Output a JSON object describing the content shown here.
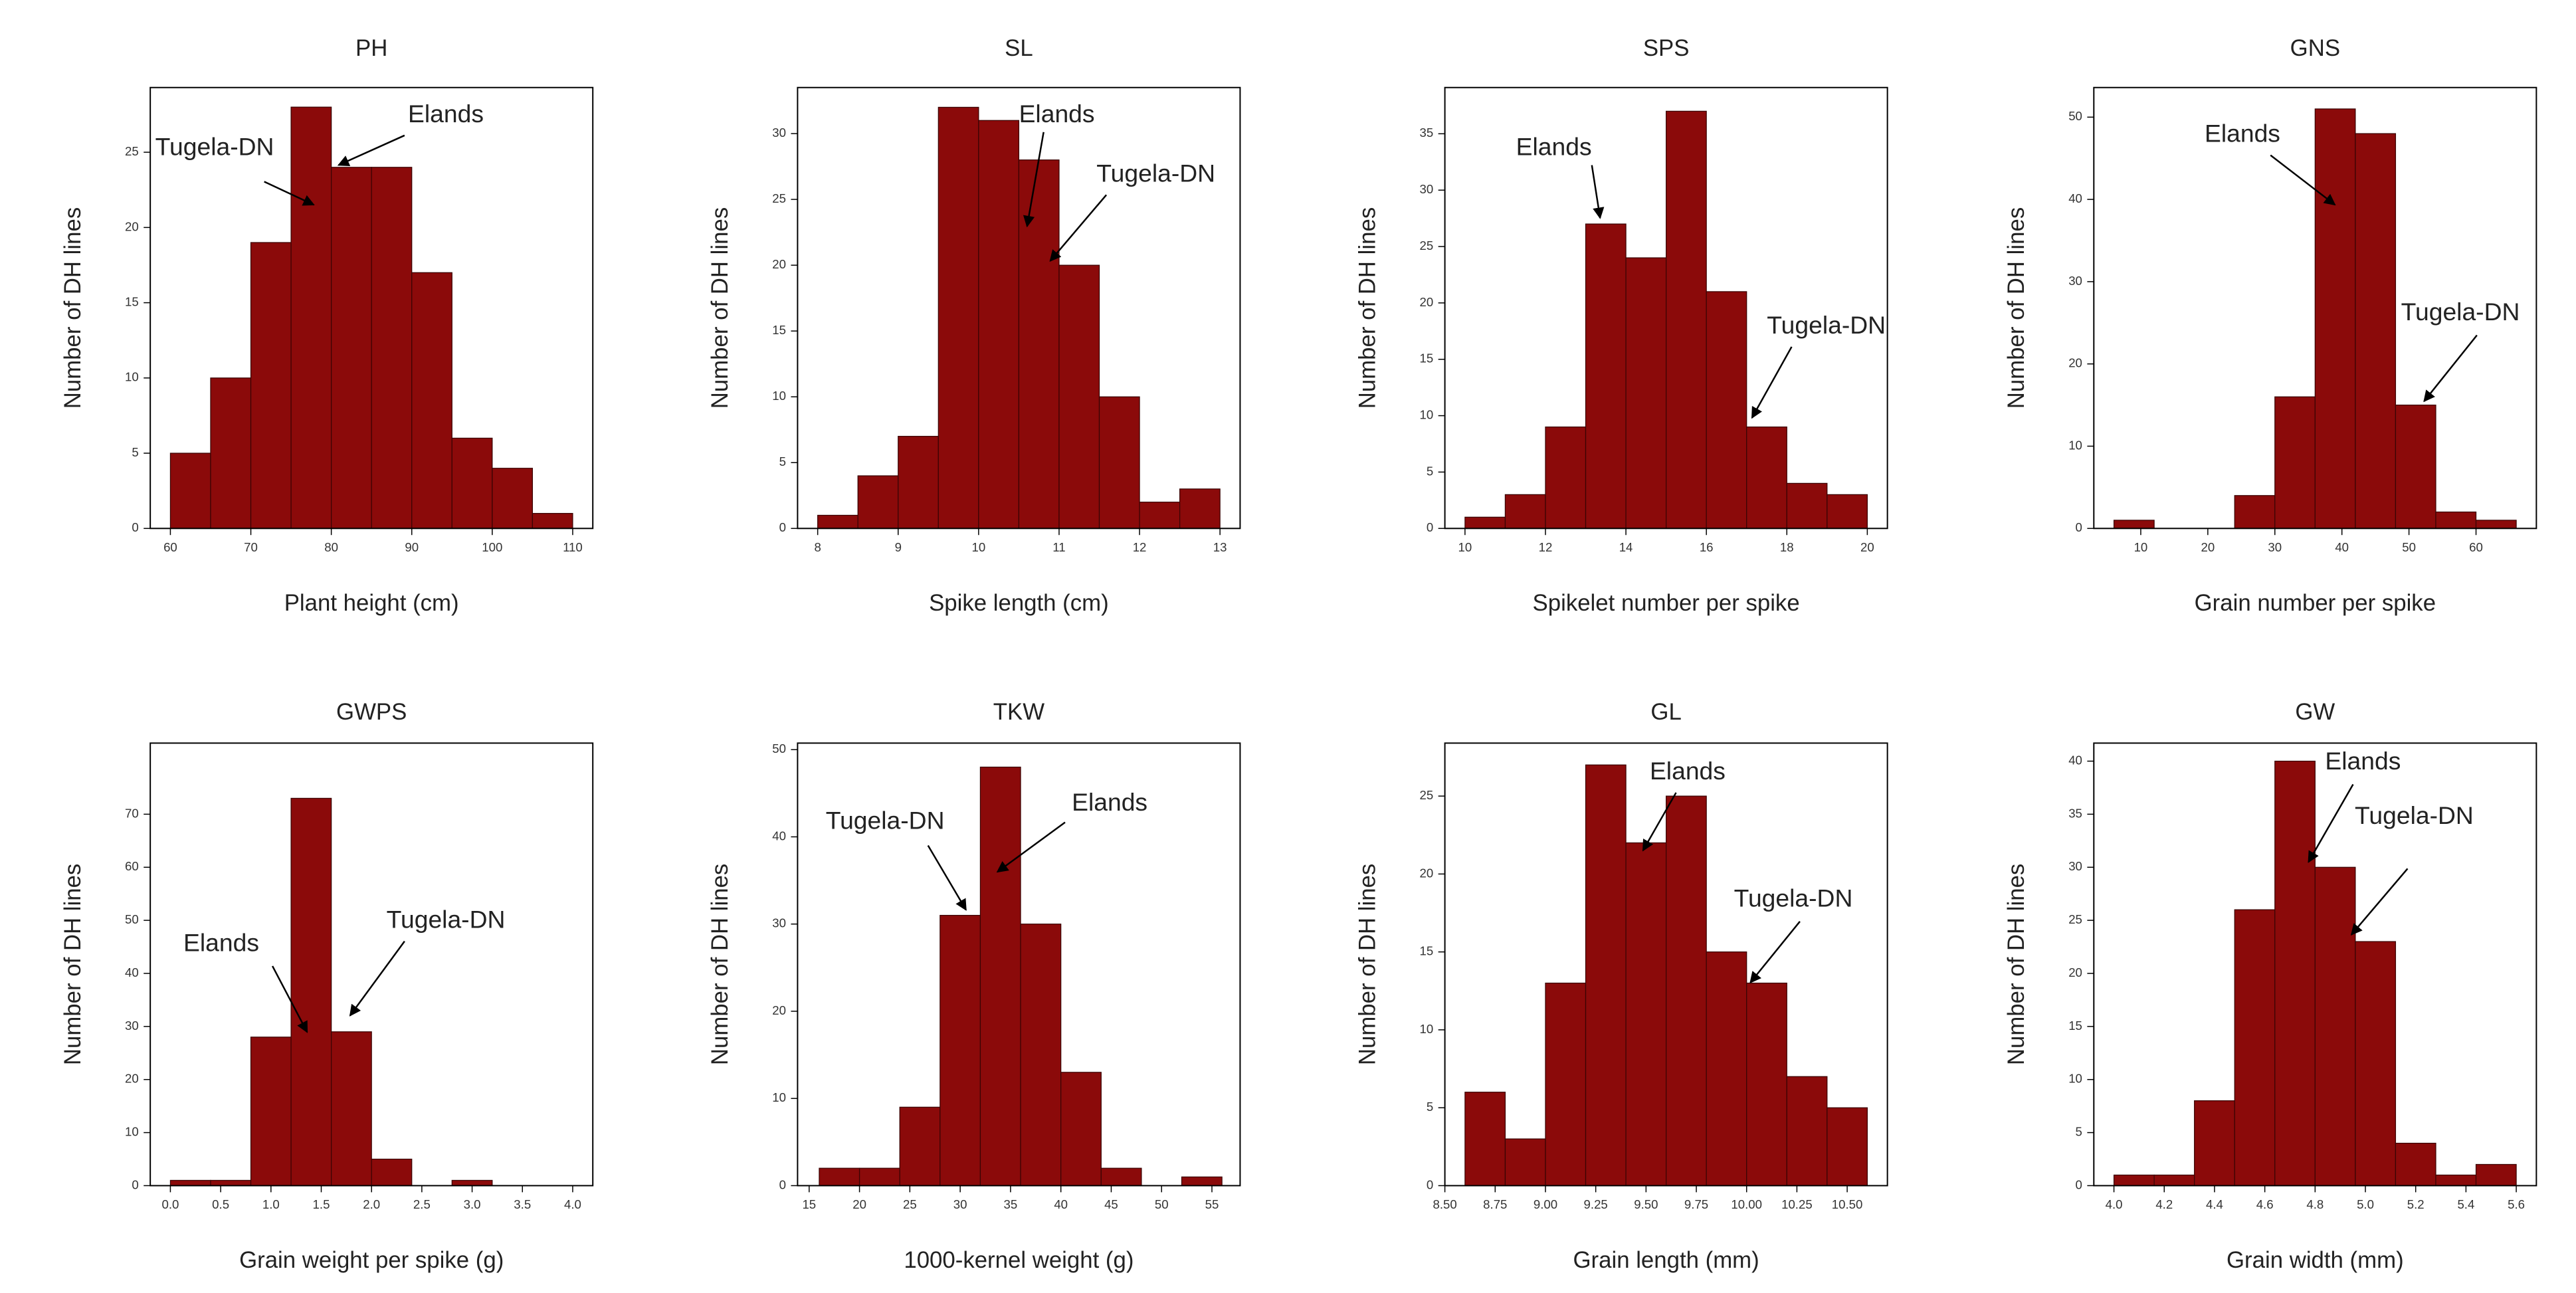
{
  "chart_data": [
    {
      "type": "histogram",
      "title": "PH",
      "xlabel": "Plant height (cm)",
      "ylabel": "Number of DH lines",
      "color": "#8b0a0a",
      "bins": [
        60,
        65,
        70,
        75,
        80,
        85,
        90,
        95,
        100,
        105,
        110
      ],
      "counts": [
        5,
        10,
        19,
        28,
        24,
        24,
        17,
        6,
        4,
        1
      ],
      "xlim": [
        57.5,
        112.5
      ],
      "xticks": [
        60,
        70,
        80,
        90,
        100,
        110
      ],
      "ylim": [
        0,
        29.3
      ],
      "yticks": [
        0,
        5,
        10,
        15,
        20,
        25
      ],
      "annotations": [
        "Tugela-DN",
        "Elands"
      ]
    },
    {
      "type": "histogram",
      "title": "SL",
      "xlabel": "Spike length (cm)",
      "ylabel": "Number of DH lines",
      "color": "#8b0a0a",
      "bins": [
        8,
        8.5,
        9,
        9.5,
        10,
        10.5,
        11,
        11.5,
        12,
        12.5,
        13
      ],
      "counts": [
        1,
        4,
        7,
        32,
        31,
        28,
        20,
        10,
        2,
        3
      ],
      "xlim": [
        7.75,
        13.25
      ],
      "xticks": [
        8,
        9,
        10,
        11,
        12,
        13
      ],
      "ylim": [
        0,
        33.5
      ],
      "yticks": [
        0,
        5,
        10,
        15,
        20,
        25,
        30
      ],
      "annotations": [
        "Elands",
        "Tugela-DN"
      ]
    },
    {
      "type": "histogram",
      "title": "SPS",
      "xlabel": "Spikelet number per spike",
      "ylabel": "Number of DH lines",
      "color": "#8b0a0a",
      "bins": [
        10,
        11,
        12,
        13,
        14,
        15,
        16,
        17,
        18,
        19,
        20
      ],
      "counts": [
        1,
        3,
        9,
        27,
        24,
        37,
        21,
        9,
        4,
        3
      ],
      "xlim": [
        9.5,
        20.5
      ],
      "xticks": [
        10,
        12,
        14,
        16,
        18,
        20
      ],
      "ylim": [
        0,
        39.1
      ],
      "yticks": [
        0,
        5,
        10,
        15,
        20,
        25,
        30,
        35
      ],
      "annotations": [
        "Elands",
        "Tugela-DN"
      ]
    },
    {
      "type": "histogram",
      "title": "GNS",
      "xlabel": "Grain number per spike",
      "ylabel": "Number of DH lines",
      "color": "#8b0a0a",
      "bins": [
        6,
        12,
        18,
        24,
        30,
        36,
        42,
        48,
        54,
        60,
        66
      ],
      "counts": [
        1,
        0,
        0,
        4,
        16,
        51,
        48,
        15,
        2,
        1
      ],
      "xlim": [
        3,
        69
      ],
      "xticks": [
        10,
        20,
        30,
        40,
        50,
        60
      ],
      "ylim": [
        0,
        53.6
      ],
      "yticks": [
        0,
        10,
        20,
        30,
        40,
        50
      ],
      "annotations": [
        "Elands",
        "Tugela-DN"
      ]
    },
    {
      "type": "histogram",
      "title": "GWPS",
      "xlabel": "Grain weight per spike (g)",
      "ylabel": "Number of DH lines",
      "color": "#8b0a0a",
      "bins": [
        0,
        0.4,
        0.8,
        1.2,
        1.6,
        2.0,
        2.4,
        2.8,
        3.2
      ],
      "counts": [
        1,
        1,
        28,
        73,
        29,
        5,
        0,
        1
      ],
      "xlim": [
        -0.2,
        4.2
      ],
      "xticks": [
        {
          "value": 0,
          "label": "0.0"
        },
        0.5,
        {
          "value": 1,
          "label": "1.0"
        },
        1.5,
        {
          "value": 2,
          "label": "2.0"
        },
        2.5,
        {
          "value": 3,
          "label": "3.0"
        },
        3.5,
        {
          "value": 4,
          "label": "4.0"
        }
      ],
      "ylim": [
        0,
        83.4
      ],
      "yticks": [
        0,
        10,
        20,
        30,
        40,
        50,
        60,
        70
      ],
      "annotations": [
        "Elands",
        "Tugela-DN"
      ]
    },
    {
      "type": "histogram",
      "title": "TKW",
      "xlabel": "1000-kernel weight (g)",
      "ylabel": "Number of DH lines",
      "color": "#8b0a0a",
      "bins": [
        16,
        20,
        24,
        28,
        32,
        36,
        40,
        44,
        48,
        52,
        56
      ],
      "counts": [
        2,
        2,
        9,
        31,
        48,
        30,
        13,
        2,
        0,
        1
      ],
      "xlim": [
        13.85,
        57.8
      ],
      "xticks": [
        15,
        20,
        25,
        30,
        35,
        40,
        45,
        50,
        55
      ],
      "ylim": [
        0,
        50.75
      ],
      "yticks": [
        0,
        10,
        20,
        30,
        40,
        50
      ],
      "annotations": [
        "Tugela-DN",
        "Elands"
      ]
    },
    {
      "type": "histogram",
      "title": "GL",
      "xlabel": "Grain length (mm)",
      "ylabel": "Number of DH lines",
      "color": "#8b0a0a",
      "bins": [
        8.6,
        8.8,
        9.0,
        9.2,
        9.4,
        9.6,
        9.8,
        10.0,
        10.2,
        10.4,
        10.6
      ],
      "counts": [
        6,
        3,
        13,
        27,
        22,
        25,
        15,
        13,
        7,
        5
      ],
      "xlim": [
        8.5,
        10.7
      ],
      "xticks": [
        {
          "value": 8.5,
          "label": "8.50"
        },
        8.75,
        {
          "value": 9,
          "label": "9.00"
        },
        9.25,
        {
          "value": 9.5,
          "label": "9.50"
        },
        9.75,
        {
          "value": 10,
          "label": "10.00"
        },
        10.25,
        {
          "value": 10.5,
          "label": "10.50"
        }
      ],
      "ylim": [
        0,
        28.4
      ],
      "yticks": [
        0,
        5,
        10,
        15,
        20,
        25
      ],
      "annotations": [
        "Elands",
        "Tugela-DN"
      ]
    },
    {
      "type": "histogram",
      "title": "GW",
      "xlabel": "Grain width (mm)",
      "ylabel": "Number of DH lines",
      "color": "#8b0a0a",
      "bins": [
        4.0,
        4.16,
        4.32,
        4.48,
        4.64,
        4.8,
        4.96,
        5.12,
        5.28,
        5.44,
        5.6
      ],
      "counts": [
        1,
        1,
        8,
        26,
        40,
        30,
        23,
        4,
        1,
        2
      ],
      "xlim": [
        3.92,
        5.68
      ],
      "xticks": [
        {
          "value": 4,
          "label": "4.0"
        },
        4.2,
        4.4,
        4.6,
        4.8,
        {
          "value": 5,
          "label": "5.0"
        },
        5.2,
        5.4,
        5.6
      ],
      "ylim": [
        0,
        41.7
      ],
      "yticks": [
        0,
        5,
        10,
        15,
        20,
        25,
        30,
        35,
        40
      ],
      "annotations": [
        "Elands",
        "Tugela-DN"
      ]
    }
  ]
}
